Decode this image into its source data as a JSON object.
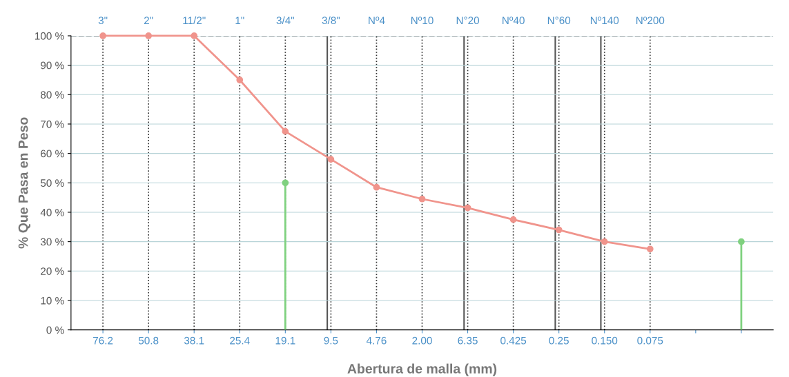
{
  "chart_data": {
    "type": "line",
    "xlabel": "Abertura de malla (mm)",
    "ylabel": "% Que Pasa en Peso",
    "categories": [
      "76.2",
      "50.8",
      "38.1",
      "25.4",
      "19.1",
      "9.5",
      "4.76",
      "2.00",
      "6.35",
      "0.425",
      "0.25",
      "0.150",
      "0.075",
      null,
      null
    ],
    "ylim": [
      0,
      100
    ],
    "yticks": [
      {
        "value": 0,
        "label": "0 %"
      },
      {
        "value": 10,
        "label": "10 %"
      },
      {
        "value": 20,
        "label": "20 %"
      },
      {
        "value": 30,
        "label": "30 %"
      },
      {
        "value": 40,
        "label": "40 %"
      },
      {
        "value": 50,
        "label": "50 %"
      },
      {
        "value": 60,
        "label": "60 %"
      },
      {
        "value": 70,
        "label": "70 %"
      },
      {
        "value": 80,
        "label": "80 %"
      },
      {
        "value": 90,
        "label": "90 %"
      },
      {
        "value": 100,
        "label": "100 %"
      }
    ],
    "annotations": [
      "3\"",
      "2\"",
      "11/2\"",
      "1\"",
      "3/4\"",
      "3/8\"",
      "Nº4",
      "Nº10",
      "N°20",
      "Nº40",
      "N°60",
      "Nº140",
      "Nº200"
    ],
    "grid": true,
    "marker": "circle",
    "line_style": "solid",
    "series": [
      {
        "color": "#f0948c",
        "values": [
          100,
          100,
          100,
          85,
          67.5,
          58,
          48.5,
          44.5,
          41.5,
          37.5,
          34,
          30,
          27.5,
          null,
          null
        ]
      },
      {
        "type": "lollipop",
        "color": "#7fd17f",
        "values": [
          null,
          null,
          null,
          null,
          50,
          null,
          null,
          null,
          null,
          null,
          null,
          null,
          null,
          null,
          30
        ]
      }
    ],
    "ref_lines": [
      {
        "axis": "x",
        "value": "9.5",
        "color": "#555555",
        "line_style": "solid"
      },
      {
        "axis": "x",
        "value": "6.35",
        "color": "#555555",
        "line_style": "solid"
      },
      {
        "axis": "x",
        "value": "0.25",
        "color": "#555555",
        "line_style": "solid"
      },
      {
        "axis": "x",
        "value": "0.150",
        "color": "#555555",
        "line_style": "solid"
      },
      {
        "axis": "y",
        "value": 100,
        "color": "#666666",
        "line_style": "dashed"
      }
    ]
  }
}
